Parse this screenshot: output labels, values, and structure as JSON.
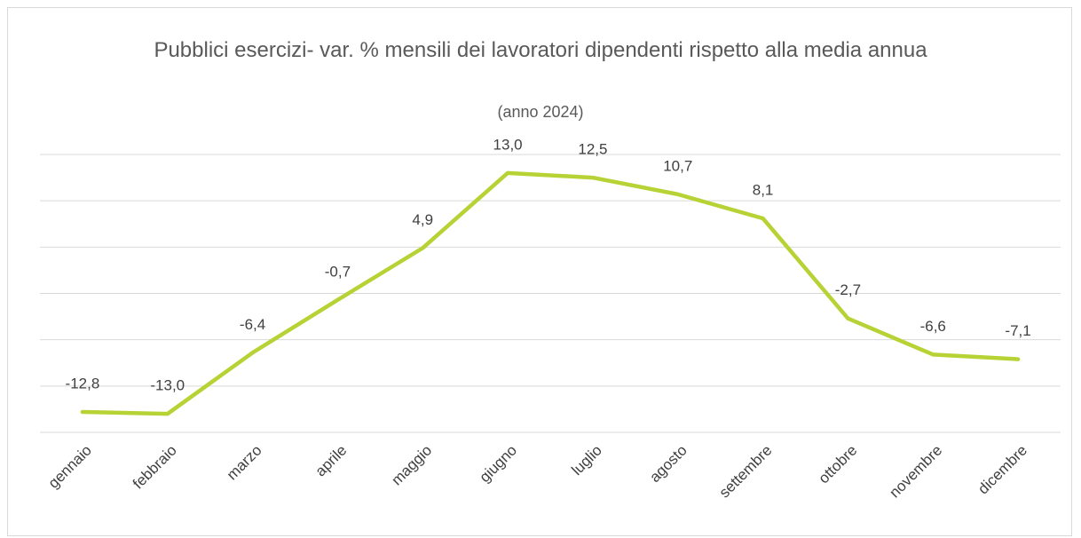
{
  "chart_data": {
    "type": "line",
    "title": "Pubblici esercizi- var. % mensili dei lavoratori dipendenti rispetto alla media annua",
    "subtitle": "(anno 2024)",
    "categories": [
      "gennaio",
      "febbraio",
      "marzo",
      "aprile",
      "maggio",
      "giugno",
      "luglio",
      "agosto",
      "settembre",
      "ottobre",
      "novembre",
      "dicembre"
    ],
    "values": [
      -12.8,
      -13.0,
      -6.4,
      -0.7,
      4.9,
      13.0,
      12.5,
      10.7,
      8.1,
      -2.7,
      -6.6,
      -7.1
    ],
    "value_labels": [
      "-12,8",
      "-13,0",
      "-6,4",
      "-0,7",
      "4,9",
      "13,0",
      "12,5",
      "10,7",
      "8,1",
      "-2,7",
      "-6,6",
      "-7,1"
    ],
    "color": "#b6d234",
    "ylim": [
      -15,
      15
    ],
    "yticks": [
      -15,
      -10,
      -5,
      0,
      5,
      10,
      15
    ],
    "grid": true
  }
}
